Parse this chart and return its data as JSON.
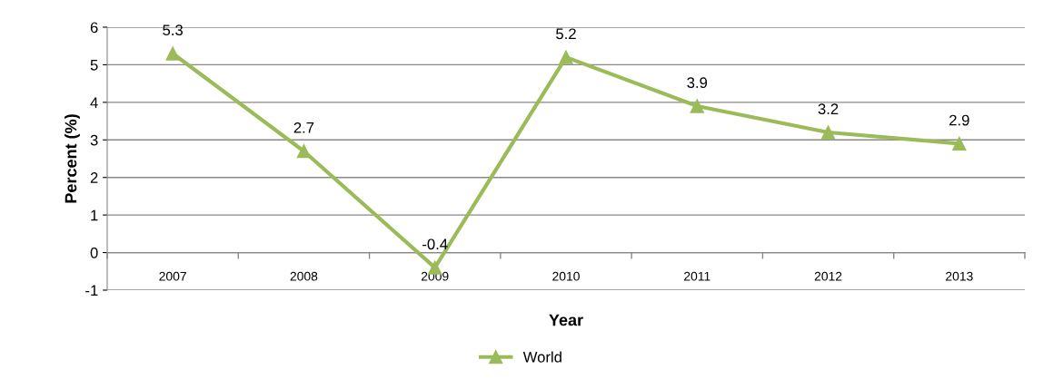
{
  "chart_data": {
    "type": "line",
    "xlabel": "Year",
    "ylabel": "Percent (%)",
    "categories": [
      "2007",
      "2008",
      "2009",
      "2010",
      "2011",
      "2012",
      "2013"
    ],
    "series": [
      {
        "name": "World",
        "color": "#9bbb59",
        "values": [
          5.3,
          2.7,
          -0.4,
          5.2,
          3.9,
          3.2,
          2.9
        ]
      }
    ],
    "ylim": [
      -1,
      6
    ],
    "yticks": [
      -1,
      0,
      1,
      2,
      3,
      4,
      5,
      6
    ],
    "grid": "y",
    "legend": "bottom",
    "marker": "triangle",
    "line_style": "solid",
    "data_labels": true
  }
}
